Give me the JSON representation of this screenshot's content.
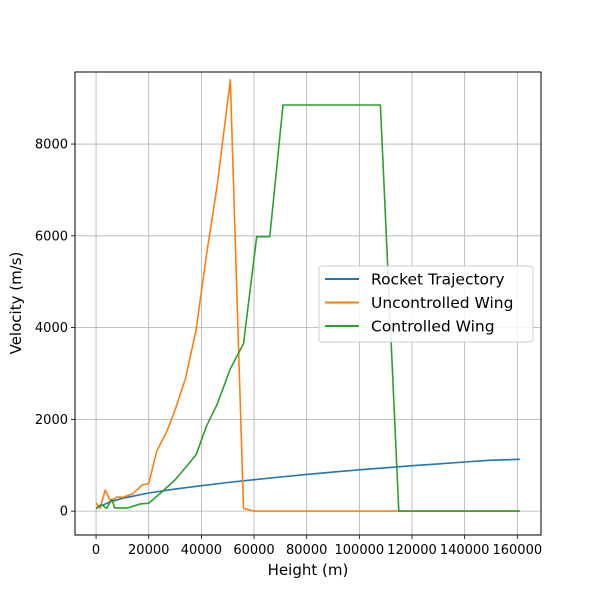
{
  "chart_data": {
    "type": "line",
    "xlabel": "Height (m)",
    "ylabel": "Velocity (m/s)",
    "xlim": [
      -8000,
      169000
    ],
    "ylim": [
      -520,
      9570
    ],
    "grid": true,
    "legend_position": "center-right",
    "x_ticks": [
      0,
      20000,
      40000,
      60000,
      80000,
      100000,
      120000,
      140000,
      160000
    ],
    "x_tick_labels": [
      "0",
      "20000",
      "40000",
      "60000",
      "80000",
      "100000",
      "120000",
      "140000",
      "160000"
    ],
    "y_ticks": [
      0,
      2000,
      4000,
      6000,
      8000
    ],
    "y_tick_labels": [
      "0",
      "2000",
      "4000",
      "6000",
      "8000"
    ],
    "series": [
      {
        "name": "Rocket Trajectory",
        "color": "#1f77b4",
        "points": [
          [
            0,
            60
          ],
          [
            5000,
            195
          ],
          [
            10000,
            280
          ],
          [
            20000,
            395
          ],
          [
            30000,
            480
          ],
          [
            40000,
            555
          ],
          [
            50000,
            625
          ],
          [
            60000,
            685
          ],
          [
            70000,
            745
          ],
          [
            80000,
            800
          ],
          [
            90000,
            850
          ],
          [
            100000,
            900
          ],
          [
            110000,
            945
          ],
          [
            120000,
            990
          ],
          [
            130000,
            1030
          ],
          [
            140000,
            1070
          ],
          [
            150000,
            1110
          ],
          [
            161000,
            1130
          ]
        ]
      },
      {
        "name": "Uncontrolled Wing",
        "color": "#ff7f0e",
        "points": [
          [
            0,
            180
          ],
          [
            1500,
            60
          ],
          [
            3500,
            460
          ],
          [
            5500,
            210
          ],
          [
            8000,
            310
          ],
          [
            10000,
            300
          ],
          [
            14000,
            380
          ],
          [
            17500,
            570
          ],
          [
            20000,
            600
          ],
          [
            23000,
            1300
          ],
          [
            27000,
            1750
          ],
          [
            30000,
            2200
          ],
          [
            34000,
            2900
          ],
          [
            38000,
            3950
          ],
          [
            42000,
            5600
          ],
          [
            46000,
            7100
          ],
          [
            51000,
            9400
          ],
          [
            56000,
            60
          ],
          [
            60000,
            0
          ],
          [
            70000,
            0
          ],
          [
            100000,
            0
          ],
          [
            130000,
            0
          ],
          [
            161000,
            0
          ]
        ]
      },
      {
        "name": "Controlled Wing",
        "color": "#2ca02c",
        "points": [
          [
            0,
            60
          ],
          [
            2000,
            150
          ],
          [
            4000,
            60
          ],
          [
            6000,
            260
          ],
          [
            7000,
            70
          ],
          [
            12000,
            70
          ],
          [
            17000,
            160
          ],
          [
            20000,
            170
          ],
          [
            25000,
            420
          ],
          [
            30000,
            680
          ],
          [
            34000,
            950
          ],
          [
            38000,
            1230
          ],
          [
            42000,
            1860
          ],
          [
            46000,
            2330
          ],
          [
            51000,
            3100
          ],
          [
            56000,
            3650
          ],
          [
            61000,
            5980
          ],
          [
            66000,
            5980
          ],
          [
            71000,
            8850
          ],
          [
            108000,
            8850
          ],
          [
            115000,
            0
          ],
          [
            130000,
            0
          ],
          [
            161000,
            0
          ]
        ]
      }
    ]
  }
}
